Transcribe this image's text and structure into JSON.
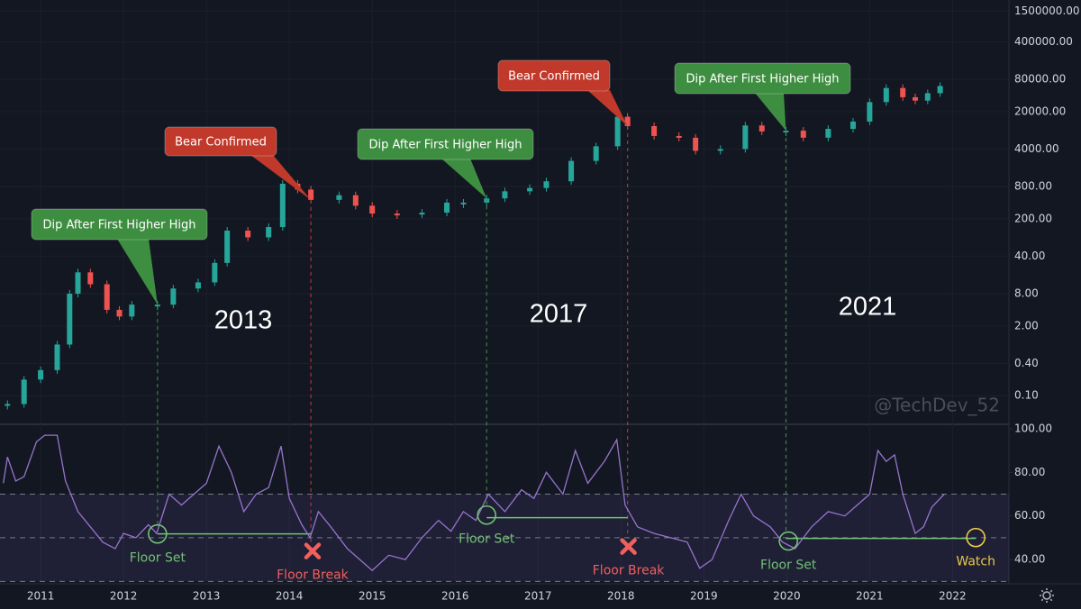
{
  "chart_data": [
    {
      "type": "candlestick",
      "x": [
        2010.6,
        2010.8,
        2011.0,
        2011.2,
        2011.35,
        2011.45,
        2011.6,
        2011.8,
        2011.95,
        2012.1,
        2012.41,
        2012.6,
        2012.9,
        2013.1,
        2013.25,
        2013.5,
        2013.75,
        2013.92,
        2014.1,
        2014.26,
        2014.6,
        2014.8,
        2015.0,
        2015.3,
        2015.6,
        2015.9,
        2016.1,
        2016.38,
        2016.6,
        2016.9,
        2017.1,
        2017.4,
        2017.7,
        2017.96,
        2018.08,
        2018.4,
        2018.7,
        2018.9,
        2019.2,
        2019.5,
        2019.7,
        2019.99,
        2020.2,
        2020.5,
        2020.8,
        2021.0,
        2021.2,
        2021.4,
        2021.55,
        2021.7,
        2021.85
      ],
      "values": [
        0.07,
        0.2,
        0.3,
        0.9,
        8,
        20,
        12,
        4,
        3,
        5,
        5,
        10,
        13,
        30,
        120,
        90,
        140,
        900,
        700,
        450,
        550,
        350,
        250,
        240,
        260,
        400,
        400,
        480,
        650,
        750,
        1000,
        2400,
        4500,
        16000,
        10700,
        7000,
        6500,
        3700,
        4000,
        11000,
        8500,
        8800,
        6500,
        9500,
        13000,
        30000,
        55000,
        37000,
        32000,
        44000,
        60000
      ],
      "up_color": "#26a69a",
      "down_color": "#ef5350",
      "log_scale": true,
      "grid": true,
      "xlim": [
        2010.51,
        2022.68
      ],
      "xticks": [
        2011,
        2012,
        2013,
        2014,
        2015,
        2016,
        2017,
        2018,
        2019,
        2020,
        2021,
        2022
      ],
      "ylim": [
        0.0304,
        2410000
      ],
      "yticks": [
        {
          "value": 0.1,
          "label": "0.10"
        },
        {
          "value": 0.4,
          "label": "0.40"
        },
        {
          "value": 2,
          "label": "2.00"
        },
        {
          "value": 8,
          "label": "8.00"
        },
        {
          "value": 40,
          "label": "40.00"
        },
        {
          "value": 200,
          "label": "200.00"
        },
        {
          "value": 800,
          "label": "800.00"
        },
        {
          "value": 4000,
          "label": "4000.00"
        },
        {
          "value": 20000,
          "label": "20000.00"
        },
        {
          "value": 80000,
          "label": "80000.00"
        },
        {
          "value": 400000,
          "label": "400000.00"
        },
        {
          "value": 1500000,
          "label": "1500000.00"
        }
      ],
      "annotations": [
        {
          "text": "Dip After First Higher High",
          "x": 2012.41,
          "price": 5,
          "color": "#3e8e41"
        },
        {
          "text": "Bear Confirmed",
          "x": 2014.26,
          "price": 450,
          "color": "#c0392b"
        },
        {
          "text": "Dip After First Higher High",
          "x": 2016.38,
          "price": 480,
          "color": "#3e8e41"
        },
        {
          "text": "Bear Confirmed",
          "x": 2018.08,
          "price": 10700,
          "color": "#c0392b"
        },
        {
          "text": "Dip After First Higher High",
          "x": 2019.99,
          "price": 8800,
          "color": "#3e8e41"
        }
      ],
      "cycle_labels": [
        "2013",
        "2017",
        "2021"
      ],
      "watermark": "@TechDev_52"
    },
    {
      "type": "line",
      "x": [
        2010.55,
        2010.6,
        2010.7,
        2010.8,
        2010.95,
        2011.05,
        2011.2,
        2011.3,
        2011.45,
        2011.6,
        2011.75,
        2011.9,
        2012.0,
        2012.15,
        2012.3,
        2012.4,
        2012.55,
        2012.7,
        2012.85,
        2013.0,
        2013.15,
        2013.3,
        2013.45,
        2013.6,
        2013.75,
        2013.9,
        2014.0,
        2014.15,
        2014.25,
        2014.35,
        2014.5,
        2014.7,
        2014.85,
        2015.0,
        2015.2,
        2015.4,
        2015.6,
        2015.8,
        2015.95,
        2016.1,
        2016.25,
        2016.4,
        2016.6,
        2016.8,
        2016.95,
        2017.1,
        2017.3,
        2017.45,
        2017.6,
        2017.8,
        2017.95,
        2018.05,
        2018.2,
        2018.4,
        2018.6,
        2018.8,
        2018.95,
        2019.1,
        2019.3,
        2019.45,
        2019.6,
        2019.8,
        2019.95,
        2020.1,
        2020.3,
        2020.5,
        2020.7,
        2020.85,
        2021.0,
        2021.1,
        2021.2,
        2021.3,
        2021.4,
        2021.55,
        2021.65,
        2021.75,
        2021.85,
        2021.9
      ],
      "values": [
        75,
        87,
        76,
        78,
        94,
        97,
        97,
        76,
        62,
        55,
        48,
        45,
        52,
        50,
        56,
        52,
        70,
        65,
        70,
        75,
        92,
        80,
        62,
        70,
        73,
        92,
        68,
        56,
        50,
        62,
        55,
        45,
        40,
        35,
        42,
        40,
        50,
        58,
        53,
        62,
        58,
        70,
        62,
        72,
        68,
        80,
        70,
        90,
        75,
        85,
        95,
        65,
        55,
        52,
        50,
        48,
        36,
        40,
        58,
        70,
        60,
        55,
        48,
        45,
        55,
        62,
        60,
        65,
        70,
        90,
        85,
        88,
        70,
        52,
        55,
        64,
        68,
        70
      ],
      "color": "#9575cd",
      "xlim": [
        2010.51,
        2022.68
      ],
      "ylim": [
        28.9,
        101.6
      ],
      "yticks": [
        {
          "value": 40,
          "label": "40.00"
        },
        {
          "value": 60,
          "label": "60.00"
        },
        {
          "value": 80,
          "label": "80.00"
        },
        {
          "value": 100,
          "label": "100.00"
        }
      ],
      "levels": [
        30,
        50,
        70
      ],
      "markers": [
        {
          "text": "Floor Set",
          "x": 2012.41,
          "y": 51.75,
          "marker": "circle",
          "color": "#73c275"
        },
        {
          "text": "Floor Break",
          "x": 2014.28,
          "y": 43.9,
          "marker": "cross",
          "color": "#f0605d"
        },
        {
          "text": "Floor Set",
          "x": 2016.38,
          "y": 60.4,
          "marker": "circle",
          "color": "#73c275"
        },
        {
          "text": "Floor Break",
          "x": 2018.09,
          "y": 46,
          "marker": "cross",
          "color": "#f0605d"
        },
        {
          "text": "Floor Set",
          "x": 2020.02,
          "y": 48.5,
          "marker": "circle",
          "color": "#73c275"
        },
        {
          "text": "Watch",
          "x": 2022.28,
          "y": 50.1,
          "marker": "circle",
          "color": "#e8c84c"
        }
      ],
      "floors": [
        {
          "x": [
            2012.41,
            2014.26
          ],
          "y": 51.75,
          "color": "#73c275"
        },
        {
          "x": [
            2016.38,
            2018.08
          ],
          "y": 59.2,
          "color": "#73c275"
        },
        {
          "x": [
            2019.99,
            2022.28
          ],
          "y": 49.7,
          "color": "#73c275"
        }
      ]
    }
  ]
}
